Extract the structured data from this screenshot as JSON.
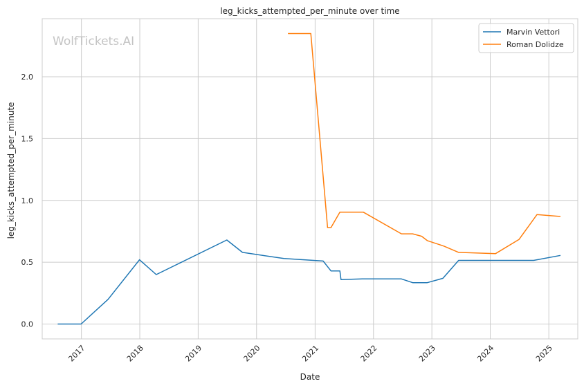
{
  "chart_data": {
    "type": "line",
    "title": "leg_kicks_attempted_per_minute over time",
    "xlabel": "Date",
    "ylabel": "leg_kicks_attempted_per_minute",
    "watermark": "WolfTickets.AI",
    "xlim": [
      "2016-05-01",
      "2025-07-01"
    ],
    "ylim": [
      -0.12,
      2.47
    ],
    "x_ticks": [
      "2017",
      "2018",
      "2019",
      "2020",
      "2021",
      "2022",
      "2023",
      "2024",
      "2025"
    ],
    "y_ticks": [
      "0.0",
      "0.5",
      "1.0",
      "1.5",
      "2.0"
    ],
    "grid": true,
    "legend_position": "top-right",
    "series": [
      {
        "name": "Marvin Vettori",
        "color": "#1f77b4",
        "points": [
          [
            "2016-08-06",
            0.0
          ],
          [
            "2016-12-30",
            0.0
          ],
          [
            "2017-06-17",
            0.2
          ],
          [
            "2017-12-30",
            0.52
          ],
          [
            "2018-04-14",
            0.4
          ],
          [
            "2019-06-29",
            0.68
          ],
          [
            "2019-10-05",
            0.58
          ],
          [
            "2020-06-20",
            0.53
          ],
          [
            "2021-02-20",
            0.51
          ],
          [
            "2021-04-10",
            0.43
          ],
          [
            "2021-06-05",
            0.43
          ],
          [
            "2021-06-12",
            0.36
          ],
          [
            "2021-10-23",
            0.365
          ],
          [
            "2022-06-25",
            0.365
          ],
          [
            "2022-09-03",
            0.335
          ],
          [
            "2022-12-03",
            0.335
          ],
          [
            "2023-03-11",
            0.37
          ],
          [
            "2023-06-17",
            0.515
          ],
          [
            "2024-09-28",
            0.515
          ],
          [
            "2025-03-15",
            0.555
          ]
        ]
      },
      {
        "name": "Roman Dolidze",
        "color": "#ff7f0e",
        "points": [
          [
            "2020-07-15",
            2.35
          ],
          [
            "2020-12-05",
            2.35
          ],
          [
            "2021-03-20",
            0.78
          ],
          [
            "2021-04-10",
            0.78
          ],
          [
            "2021-06-05",
            0.905
          ],
          [
            "2021-10-30",
            0.905
          ],
          [
            "2022-06-25",
            0.73
          ],
          [
            "2022-09-03",
            0.73
          ],
          [
            "2022-10-29",
            0.71
          ],
          [
            "2022-12-03",
            0.675
          ],
          [
            "2023-03-18",
            0.63
          ],
          [
            "2023-06-17",
            0.58
          ],
          [
            "2024-02-03",
            0.57
          ],
          [
            "2024-06-29",
            0.685
          ],
          [
            "2024-10-19",
            0.885
          ],
          [
            "2025-03-15",
            0.87
          ]
        ]
      }
    ]
  }
}
